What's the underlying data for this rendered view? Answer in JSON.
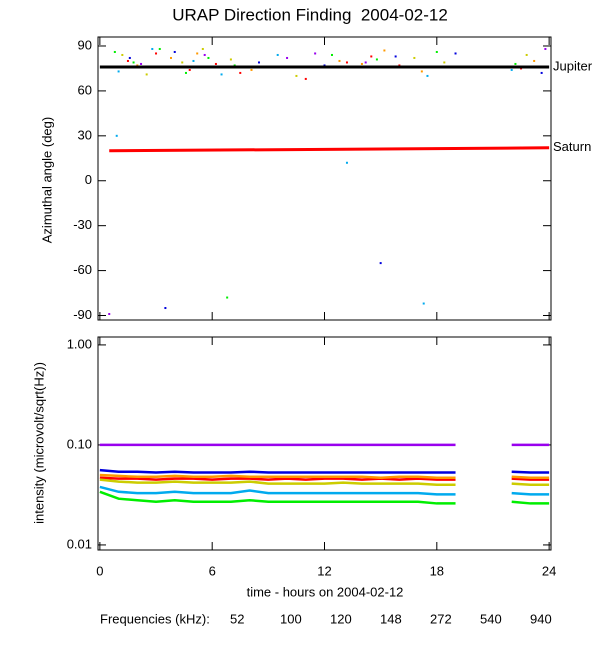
{
  "chart_data": [
    {
      "type": "scatter",
      "title": "URAP Direction Finding  2004-02-12",
      "ylabel": "Azimuthal angle (deg)",
      "xlim": [
        -0.1,
        24.1
      ],
      "xticks": [
        0,
        6,
        12,
        18,
        24
      ],
      "ylim": [
        -93,
        96
      ],
      "yticks": [
        -90,
        -60,
        -30,
        0,
        30,
        60,
        90
      ],
      "series": [
        {
          "color": "#ff0000",
          "x": [
            1.5,
            3,
            4.8,
            6.2,
            7.5,
            11,
            13.2,
            14.5,
            16,
            22.5
          ],
          "values": [
            80,
            85,
            74,
            78,
            72,
            68,
            79,
            83,
            77,
            75
          ]
        },
        {
          "color": "#ff9900",
          "x": [
            2,
            3.8,
            5.2,
            6,
            8.1,
            12.8,
            14,
            15.2,
            17.2,
            23.2
          ],
          "values": [
            77,
            82,
            85,
            76,
            74,
            80,
            78,
            87,
            73,
            80
          ]
        },
        {
          "color": "#cccc00",
          "x": [
            1.2,
            2.5,
            4.4,
            5.5,
            7,
            10.5,
            13.6,
            16.8,
            18.4,
            22.8
          ],
          "values": [
            84,
            71,
            79,
            88,
            81,
            70,
            76,
            82,
            79,
            84
          ]
        },
        {
          "color": "#00ee00",
          "x": [
            0.8,
            1.8,
            3.2,
            4.6,
            5.8,
            7.2,
            12.4,
            14.8,
            18,
            22.2,
            6.8
          ],
          "values": [
            86,
            79,
            88,
            72,
            82,
            77,
            84,
            81,
            86,
            78,
            -78
          ]
        },
        {
          "color": "#00aaee",
          "x": [
            1,
            2.8,
            5,
            6.5,
            9.5,
            13,
            17.5,
            22,
            0.9,
            13.2,
            17.3
          ],
          "values": [
            73,
            88,
            80,
            71,
            84,
            76,
            70,
            74,
            30,
            12,
            -82
          ]
        },
        {
          "color": "#0000dd",
          "x": [
            1.6,
            4,
            8.5,
            12,
            15.8,
            19,
            23.6,
            3.5,
            15
          ],
          "values": [
            82,
            86,
            79,
            77,
            83,
            85,
            72,
            -85,
            -55
          ]
        },
        {
          "color": "#9900ee",
          "x": [
            2.2,
            5.6,
            10,
            14.2,
            23.8,
            0.5,
            11.5
          ],
          "values": [
            78,
            84,
            82,
            79,
            88,
            -89,
            85
          ]
        }
      ],
      "reference_lines": [
        {
          "label": "Jupiter",
          "color": "#000000",
          "x": [
            0,
            24
          ],
          "values": [
            76,
            76
          ]
        },
        {
          "label": "Saturn",
          "color": "#ff0000",
          "x": [
            0.5,
            24
          ],
          "values": [
            20,
            22
          ]
        }
      ]
    },
    {
      "type": "line",
      "ylabel": "intensity (microvolt/sqrt(Hz))",
      "xlabel": "time - hours on 2004-02-12",
      "log_scale": true,
      "legend_title": "Frequencies (kHz):",
      "xlim": [
        -0.1,
        24.1
      ],
      "xticks": [
        0,
        6,
        12,
        18,
        24
      ],
      "ylim": [
        0.0089,
        1.2
      ],
      "yticks": [
        {
          "value": 0.01,
          "label": "0.01"
        },
        {
          "value": 0.1,
          "label": "0.10"
        },
        {
          "value": 1,
          "label": "1.00"
        }
      ],
      "x": [
        0,
        1,
        2,
        3,
        4,
        5,
        6,
        7,
        8,
        9,
        10,
        11,
        12,
        13,
        14,
        15,
        16,
        17,
        18,
        19,
        20,
        21,
        22,
        23,
        24
      ],
      "series": [
        {
          "name": "52",
          "color": "#ff0000",
          "values": [
            0.047,
            0.046,
            0.046,
            0.045,
            0.046,
            0.046,
            0.045,
            0.046,
            0.046,
            0.045,
            0.046,
            0.045,
            0.046,
            0.046,
            0.045,
            0.046,
            0.045,
            0.046,
            0.045,
            0.045,
            null,
            null,
            0.046,
            0.045,
            0.045
          ]
        },
        {
          "name": "100",
          "color": "#ff9900",
          "values": [
            0.05,
            0.049,
            0.048,
            0.048,
            0.049,
            0.048,
            0.048,
            0.049,
            0.048,
            0.048,
            0.048,
            0.048,
            0.048,
            0.048,
            0.048,
            0.047,
            0.048,
            0.048,
            0.047,
            0.047,
            null,
            null,
            0.048,
            0.047,
            0.047
          ]
        },
        {
          "name": "120",
          "color": "#cccc00",
          "values": [
            0.045,
            0.043,
            0.042,
            0.042,
            0.043,
            0.042,
            0.042,
            0.042,
            0.043,
            0.041,
            0.041,
            0.041,
            0.041,
            0.042,
            0.041,
            0.041,
            0.041,
            0.041,
            0.04,
            0.04,
            null,
            null,
            0.041,
            0.04,
            0.04
          ]
        },
        {
          "name": "148",
          "color": "#00ee00",
          "values": [
            0.034,
            0.029,
            0.028,
            0.027,
            0.028,
            0.027,
            0.027,
            0.027,
            0.028,
            0.027,
            0.027,
            0.027,
            0.027,
            0.027,
            0.027,
            0.027,
            0.027,
            0.027,
            0.026,
            0.026,
            null,
            null,
            0.027,
            0.026,
            0.026
          ]
        },
        {
          "name": "272",
          "color": "#00aaee",
          "values": [
            0.038,
            0.034,
            0.033,
            0.033,
            0.034,
            0.033,
            0.033,
            0.033,
            0.035,
            0.033,
            0.033,
            0.033,
            0.033,
            0.033,
            0.033,
            0.033,
            0.033,
            0.033,
            0.032,
            0.032,
            null,
            null,
            0.033,
            0.032,
            0.032
          ]
        },
        {
          "name": "540",
          "color": "#0000dd",
          "values": [
            0.056,
            0.054,
            0.054,
            0.053,
            0.054,
            0.053,
            0.053,
            0.053,
            0.054,
            0.053,
            0.053,
            0.053,
            0.053,
            0.053,
            0.053,
            0.053,
            0.053,
            0.053,
            0.053,
            0.053,
            null,
            null,
            0.054,
            0.053,
            0.053
          ]
        },
        {
          "name": "940",
          "color": "#9900ee",
          "values": [
            0.1,
            0.1,
            0.1,
            0.1,
            0.1,
            0.1,
            0.1,
            0.1,
            0.1,
            0.1,
            0.1,
            0.1,
            0.1,
            0.1,
            0.1,
            0.1,
            0.1,
            0.1,
            0.1,
            0.1,
            null,
            null,
            0.1,
            0.1,
            0.1
          ]
        }
      ]
    }
  ]
}
